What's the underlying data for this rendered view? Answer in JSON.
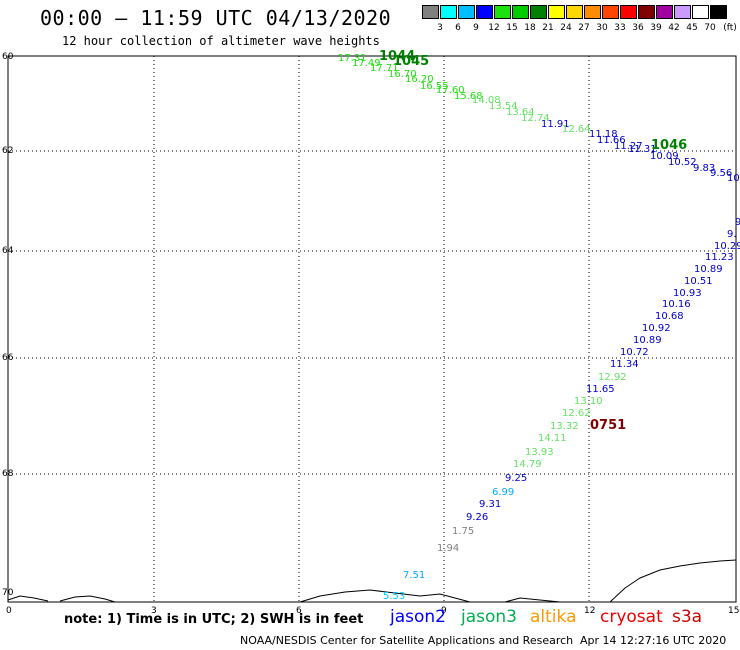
{
  "header": {
    "title": "00:00 – 11:59 UTC 04/13/2020",
    "subtitle": "12 hour collection of altimeter wave heights"
  },
  "scale": {
    "unit": "(ft)",
    "colors": [
      "#808080",
      "#00ffff",
      "#00bfff",
      "#0000ff",
      "#1fe00f",
      "#00cc00",
      "#008000",
      "#ffff00",
      "#ffd700",
      "#ff8c00",
      "#ff4500",
      "#ff0000",
      "#800000",
      "#a000a0",
      "#cc99ff",
      "#ffffff",
      "#000000"
    ],
    "ticks": [
      "3",
      "6",
      "9",
      "12",
      "15",
      "18",
      "21",
      "24",
      "27",
      "30",
      "33",
      "36",
      "39",
      "42",
      "45",
      "70"
    ]
  },
  "axes": {
    "lat_labels": [
      "60",
      "62",
      "64",
      "66",
      "68",
      "70"
    ],
    "lon_labels": [
      "0",
      "3",
      "6",
      "9",
      "12",
      "15"
    ]
  },
  "points": [
    {
      "t": "17.31",
      "c": "#1fe00f"
    },
    {
      "t": "1044",
      "c": "#008000"
    },
    {
      "t": "17.49",
      "c": "#1fe00f"
    },
    {
      "t": "1045",
      "c": "#008000"
    },
    {
      "t": "17.71",
      "c": "#1fe00f"
    },
    {
      "t": "16.70",
      "c": "#1fe00f"
    },
    {
      "t": "16.20",
      "c": "#1fe00f"
    },
    {
      "t": "16.55",
      "c": "#1fe00f"
    },
    {
      "t": "17.60",
      "c": "#1fe00f"
    },
    {
      "t": "15.68",
      "c": "#1fe00f"
    },
    {
      "t": "14.08",
      "c": "#66e066"
    },
    {
      "t": "13.54",
      "c": "#66e066"
    },
    {
      "t": "13.64",
      "c": "#66e066"
    },
    {
      "t": "12.74",
      "c": "#66e066"
    },
    {
      "t": "11.91",
      "c": "#0000cc"
    },
    {
      "t": "12.64",
      "c": "#66e066"
    },
    {
      "t": "11.18",
      "c": "#0000cc"
    },
    {
      "t": "11.66",
      "c": "#0000cc"
    },
    {
      "t": "11.27",
      "c": "#0000cc"
    },
    {
      "t": "11.31",
      "c": "#0000cc"
    },
    {
      "t": "1046",
      "c": "#008000"
    },
    {
      "t": "10.09",
      "c": "#0000cc"
    },
    {
      "t": "10.52",
      "c": "#0000cc"
    },
    {
      "t": "9.83",
      "c": "#0000cc"
    },
    {
      "t": "9.56",
      "c": "#0000cc"
    },
    {
      "t": "10.",
      "c": "#0000cc"
    },
    {
      "t": "9.",
      "c": "#0000cc"
    },
    {
      "t": "9.",
      "c": "#0000cc"
    },
    {
      "t": "10.29",
      "c": "#0000cc"
    },
    {
      "t": "11.23",
      "c": "#0000cc"
    },
    {
      "t": "10.89",
      "c": "#0000cc"
    },
    {
      "t": "10.51",
      "c": "#0000cc"
    },
    {
      "t": "10.93",
      "c": "#0000cc"
    },
    {
      "t": "10.16",
      "c": "#0000cc"
    },
    {
      "t": "10.68",
      "c": "#0000cc"
    },
    {
      "t": "10.92",
      "c": "#0000cc"
    },
    {
      "t": "10.89",
      "c": "#0000cc"
    },
    {
      "t": "10.72",
      "c": "#0000cc"
    },
    {
      "t": "11.34",
      "c": "#0000cc"
    },
    {
      "t": "12.92",
      "c": "#66e066"
    },
    {
      "t": "11.65",
      "c": "#0000cc"
    },
    {
      "t": "13.10",
      "c": "#66e066"
    },
    {
      "t": "12.62",
      "c": "#66e066"
    },
    {
      "t": "13.32",
      "c": "#66e066"
    },
    {
      "t": "0751",
      "c": "#800000"
    },
    {
      "t": "14.11",
      "c": "#66e066"
    },
    {
      "t": "13.93",
      "c": "#66e066"
    },
    {
      "t": "14.79",
      "c": "#66e066"
    },
    {
      "t": "9.25",
      "c": "#0000cc"
    },
    {
      "t": "6.99",
      "c": "#00aaff"
    },
    {
      "t": "9.31",
      "c": "#0000cc"
    },
    {
      "t": "9.26",
      "c": "#0000cc"
    },
    {
      "t": "1.75",
      "c": "#808080"
    },
    {
      "t": "1.94",
      "c": "#808080"
    },
    {
      "t": "7.51",
      "c": "#00aaff"
    },
    {
      "t": "5.53",
      "c": "#00ccff"
    }
  ],
  "footer": {
    "note": "note: 1) Time is in UTC; 2) SWH is in feet",
    "satellites": [
      {
        "name": "jason2",
        "color": "#0000ff"
      },
      {
        "name": "jason3",
        "color": "#00b050"
      },
      {
        "name": "altika",
        "color": "#ff9900"
      },
      {
        "name": "cryosat",
        "color": "#ee0000"
      },
      {
        "name": "s3a",
        "color": "#cc0000"
      }
    ],
    "credit": "NOAA/NESDIS Center for Satellite Applications and Research",
    "timestamp": "Apr 14 12:27:16 UTC 2020"
  }
}
